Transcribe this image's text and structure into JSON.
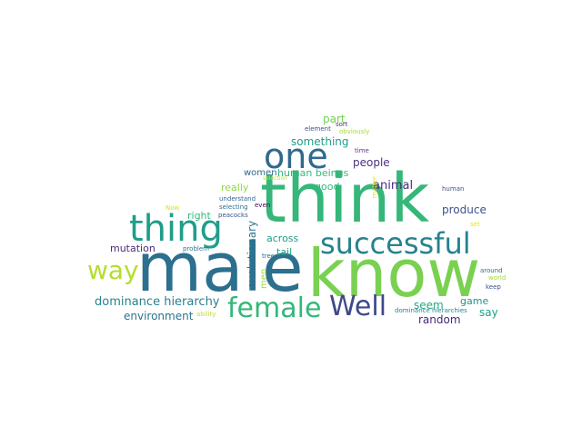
{
  "words": [
    {
      "text": "male",
      "color": "#2c6f8e"
    },
    {
      "text": "know",
      "color": "#7ad151"
    },
    {
      "text": "think",
      "color": "#35b779"
    },
    {
      "text": "thing",
      "color": "#1f9e89"
    },
    {
      "text": "successful",
      "color": "#26828e"
    },
    {
      "text": "one",
      "color": "#31688e"
    },
    {
      "text": "way",
      "color": "#b5de2b"
    },
    {
      "text": "female",
      "color": "#35b779"
    },
    {
      "text": "Well",
      "color": "#3e4989"
    },
    {
      "text": "dominance hierarchy",
      "color": "#26828e"
    },
    {
      "text": "environment",
      "color": "#2c728e"
    },
    {
      "text": "mutation",
      "color": "#472d7b"
    },
    {
      "text": "right",
      "color": "#35b779"
    },
    {
      "text": "really",
      "color": "#8fd744"
    },
    {
      "text": "women",
      "color": "#31688e"
    },
    {
      "text": "human beings",
      "color": "#35b779"
    },
    {
      "text": "something",
      "color": "#1f9e89"
    },
    {
      "text": "part",
      "color": "#75d054"
    },
    {
      "text": "people",
      "color": "#46337e"
    },
    {
      "text": "good",
      "color": "#35b779"
    },
    {
      "text": "animal",
      "color": "#472d7b"
    },
    {
      "text": "produce",
      "color": "#3b528b"
    },
    {
      "text": "say",
      "color": "#1fa187"
    },
    {
      "text": "game",
      "color": "#21918c"
    },
    {
      "text": "seem",
      "color": "#22a884"
    },
    {
      "text": "random",
      "color": "#482878"
    },
    {
      "text": "across",
      "color": "#1f9e89"
    },
    {
      "text": "tail",
      "color": "#20a386"
    },
    {
      "text": "evolutionary",
      "color": "#2a788e"
    },
    {
      "text": "men",
      "color": "#a0da39"
    },
    {
      "text": "element",
      "color": "#3b528b"
    },
    {
      "text": "sort",
      "color": "#46337e"
    },
    {
      "text": "obviously",
      "color": "#a5db36"
    },
    {
      "text": "time",
      "color": "#5b3a8c"
    },
    {
      "text": "selection",
      "color": "#c2df23"
    },
    {
      "text": "understand",
      "color": "#31688e"
    },
    {
      "text": "selecting",
      "color": "#2c728e"
    },
    {
      "text": "even",
      "color": "#440154"
    },
    {
      "text": "peacocks",
      "color": "#3b528b"
    },
    {
      "text": "Now",
      "color": "#d2e21b"
    },
    {
      "text": "problem",
      "color": "#2c728e"
    },
    {
      "text": "tree",
      "color": "#31688e"
    },
    {
      "text": "ability",
      "color": "#bddf26"
    },
    {
      "text": "human",
      "color": "#3b528b"
    },
    {
      "text": "set",
      "color": "#e5e419"
    },
    {
      "text": "around",
      "color": "#2c728e"
    },
    {
      "text": "world",
      "color": "#a2da37"
    },
    {
      "text": "keep",
      "color": "#3b528b"
    },
    {
      "text": "dominance hierarchies",
      "color": "#26828e"
    },
    {
      "text": "matter",
      "color": "#dde318"
    }
  ]
}
